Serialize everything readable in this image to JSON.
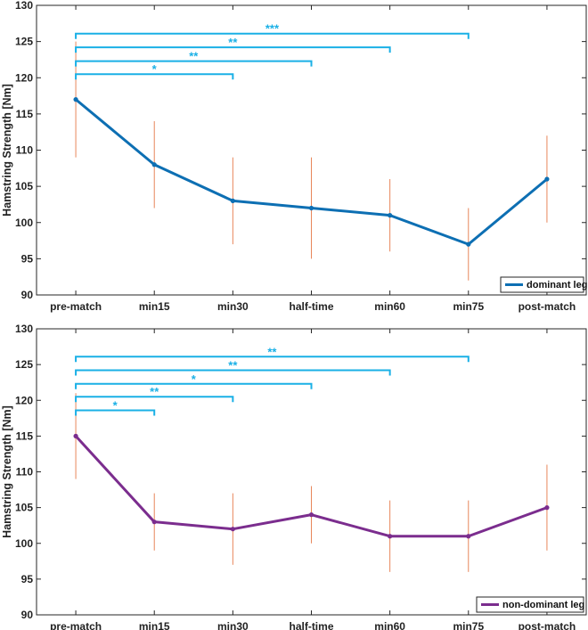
{
  "chart_data": [
    {
      "type": "line",
      "ylabel": "Hamstring Strength [Nm]",
      "xlabel": "",
      "ylim": [
        90,
        130
      ],
      "yticks": [
        90,
        95,
        100,
        105,
        110,
        115,
        120,
        125,
        130
      ],
      "categories": [
        "pre-match",
        "min15",
        "min30",
        "half-time",
        "min60",
        "min75",
        "post-match"
      ],
      "series": [
        {
          "name": "dominant leg",
          "color": "#0d6fb3",
          "values": [
            117,
            108,
            103,
            102,
            101,
            97,
            106
          ],
          "err_low": [
            109,
            102,
            97,
            95,
            96,
            92,
            100
          ],
          "err_high": [
            125,
            114,
            109,
            109,
            106,
            102,
            112
          ]
        }
      ],
      "error_bar_color": "#e8865a",
      "legend": {
        "label": "dominant leg",
        "position": "bottom-right"
      },
      "significance": [
        {
          "from": "pre-match",
          "to": "min30",
          "label": "*",
          "level": 120.5
        },
        {
          "from": "pre-match",
          "to": "half-time",
          "label": "**",
          "level": 122.3
        },
        {
          "from": "pre-match",
          "to": "min60",
          "label": "**",
          "level": 124.2
        },
        {
          "from": "pre-match",
          "to": "min75",
          "label": "***",
          "level": 126.1
        }
      ],
      "significance_color": "#1ab0e6"
    },
    {
      "type": "line",
      "ylabel": "Hamstring Strength [Nm]",
      "xlabel": "",
      "ylim": [
        90,
        130
      ],
      "yticks": [
        90,
        95,
        100,
        105,
        110,
        115,
        120,
        125,
        130
      ],
      "categories": [
        "pre-match",
        "min15",
        "min30",
        "half-time",
        "min60",
        "min75",
        "post-match"
      ],
      "series": [
        {
          "name": "non-dominant leg",
          "color": "#7b2d8e",
          "values": [
            115,
            103,
            102,
            104,
            101,
            101,
            105
          ],
          "err_low": [
            109,
            99,
            97,
            100,
            96,
            96,
            99
          ],
          "err_high": [
            121,
            107,
            107,
            108,
            106,
            106,
            111
          ]
        }
      ],
      "error_bar_color": "#e8865a",
      "legend": {
        "label": "non-dominant leg",
        "position": "bottom-right"
      },
      "significance": [
        {
          "from": "pre-match",
          "to": "min15",
          "label": "*",
          "level": 118.6
        },
        {
          "from": "pre-match",
          "to": "min30",
          "label": "**",
          "level": 120.5
        },
        {
          "from": "pre-match",
          "to": "half-time",
          "label": "*",
          "level": 122.3
        },
        {
          "from": "pre-match",
          "to": "min60",
          "label": "**",
          "level": 124.2
        },
        {
          "from": "pre-match",
          "to": "min75",
          "label": "**",
          "level": 126.1
        }
      ],
      "significance_color": "#1ab0e6"
    }
  ]
}
